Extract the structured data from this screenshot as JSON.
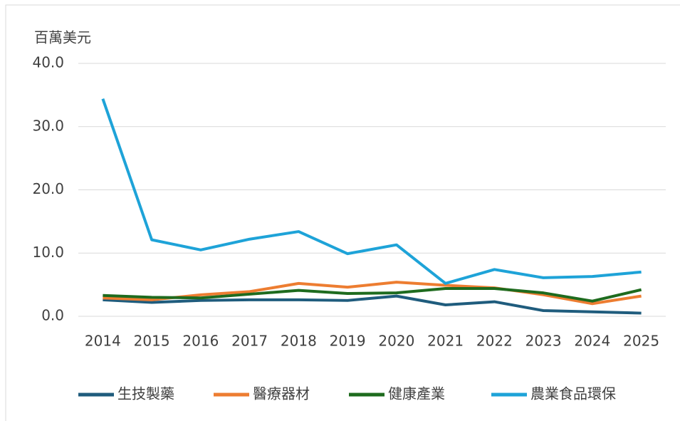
{
  "chart_data": {
    "type": "line",
    "y_label": "百萬美元",
    "categories": [
      "2014",
      "2015",
      "2016",
      "2017",
      "2018",
      "2019",
      "2020",
      "2021",
      "2022",
      "2023",
      "2024",
      "2025"
    ],
    "series": [
      {
        "name": "生技製藥",
        "color": "#1f5c7d",
        "values": [
          2.6,
          2.2,
          2.5,
          2.6,
          2.6,
          2.5,
          3.2,
          1.8,
          2.3,
          0.9,
          0.7,
          0.5
        ]
      },
      {
        "name": "醫療器材",
        "color": "#ed7d31",
        "values": [
          2.9,
          2.6,
          3.4,
          3.9,
          5.2,
          4.6,
          5.4,
          4.9,
          4.5,
          3.4,
          2.0,
          3.2
        ]
      },
      {
        "name": "健康產業",
        "color": "#1e6b1e",
        "values": [
          3.3,
          3.0,
          2.9,
          3.5,
          4.1,
          3.6,
          3.7,
          4.4,
          4.4,
          3.7,
          2.4,
          4.2
        ]
      },
      {
        "name": "農業食品環保",
        "color": "#1ea3d8",
        "values": [
          34.4,
          12.1,
          10.5,
          12.2,
          13.4,
          9.9,
          11.3,
          5.2,
          7.4,
          6.1,
          6.3,
          7.0
        ]
      }
    ],
    "ylim": [
      0,
      40
    ],
    "yticks": [
      {
        "value": 0,
        "label": "0.0"
      },
      {
        "value": 10,
        "label": "10.0"
      },
      {
        "value": 20,
        "label": "20.0"
      },
      {
        "value": 30,
        "label": "30.0"
      },
      {
        "value": 40,
        "label": "40.0"
      }
    ],
    "grid": true,
    "legend": "bottom"
  }
}
